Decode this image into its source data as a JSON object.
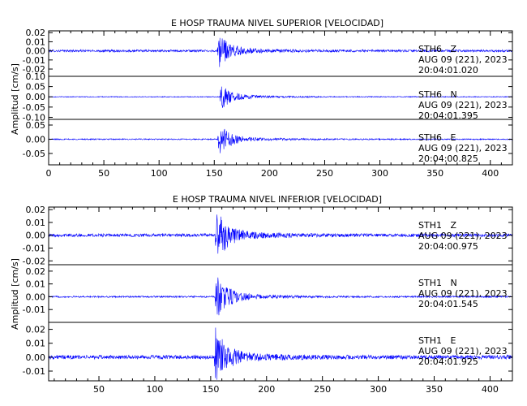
{
  "chart_data": [
    {
      "type": "line",
      "title": "E HOSP TRAUMA NIVEL SUPERIOR [VELOCIDAD]",
      "ylabel": "Amplitud [cm/s]",
      "xlim": [
        0,
        420
      ],
      "xticks": [
        0,
        50,
        100,
        150,
        200,
        250,
        300,
        350,
        400
      ],
      "series_color": "#0000ff",
      "panels": [
        {
          "name": "STH6 Z",
          "station": "STH6",
          "component": "Z",
          "date": "AUG 09 (221), 2023",
          "time": "20:04:01.020",
          "ylim": [
            -0.028,
            0.022
          ],
          "yticks": [
            "0.02",
            "0.01",
            "0.00",
            "-0.01",
            "-0.02"
          ],
          "tick_values": [
            0.02,
            0.01,
            0.0,
            -0.01,
            -0.02
          ],
          "noise": 0.0012,
          "peak": 0.018,
          "onset_s": 153
        },
        {
          "name": "STH6 N",
          "station": "STH6",
          "component": "N",
          "date": "AUG 09 (221), 2023",
          "time": "20:04:01.395",
          "ylim": [
            -0.11,
            0.1
          ],
          "yticks": [
            "0.10",
            "0.05",
            "0.00",
            "-0.05",
            "-0.10"
          ],
          "tick_values": [
            0.1,
            0.05,
            0.0,
            -0.05,
            -0.1
          ],
          "noise": 0.002,
          "peak": 0.06,
          "onset_s": 155
        },
        {
          "name": "STH6 E",
          "station": "STH6",
          "component": "E",
          "date": "AUG 09 (221), 2023",
          "time": "20:04:00.825",
          "ylim": [
            -0.09,
            0.07
          ],
          "yticks": [
            "0.05",
            "0.00",
            "-0.05"
          ],
          "tick_values": [
            0.05,
            0.0,
            -0.05
          ],
          "noise": 0.002,
          "peak": 0.055,
          "onset_s": 153
        }
      ]
    },
    {
      "type": "line",
      "title": "E HOSP TRAUMA NIVEL INFERIOR [VELOCIDAD]",
      "ylabel": "Amplitud [cm/s]",
      "xlim": [
        5,
        420
      ],
      "xticks": [
        50,
        100,
        150,
        200,
        250,
        300,
        350,
        400
      ],
      "series_color": "#0000ff",
      "panels": [
        {
          "name": "STH1 Z",
          "station": "STH1",
          "component": "Z",
          "date": "AUG 09 (221), 2023",
          "time": "20:04:00.975",
          "ylim": [
            -0.023,
            0.022
          ],
          "yticks": [
            "0.02",
            "0.01",
            "0.00",
            "-0.01",
            "-0.02"
          ],
          "tick_values": [
            0.02,
            0.01,
            0.0,
            -0.01,
            -0.02
          ],
          "noise": 0.0012,
          "peak": 0.021,
          "onset_s": 154
        },
        {
          "name": "STH1 N",
          "station": "STH1",
          "component": "N",
          "date": "AUG 09 (221), 2023",
          "time": "20:04:01.545",
          "ylim": [
            -0.02,
            0.025
          ],
          "yticks": [
            "0.02",
            "0.01",
            "0.00",
            "-0.01"
          ],
          "tick_values": [
            0.02,
            0.01,
            0.0,
            -0.01
          ],
          "noise": 0.0006,
          "peak": 0.018,
          "onset_s": 154
        },
        {
          "name": "STH1 E",
          "station": "STH1",
          "component": "E",
          "date": "AUG 09 (221), 2023",
          "time": "20:04:01.925",
          "ylim": [
            -0.017,
            0.025
          ],
          "yticks": [
            "0.02",
            "0.01",
            "0.00",
            "-0.01"
          ],
          "tick_values": [
            0.02,
            0.01,
            0.0,
            -0.01
          ],
          "noise": 0.0014,
          "peak": 0.022,
          "onset_s": 153
        }
      ]
    }
  ]
}
